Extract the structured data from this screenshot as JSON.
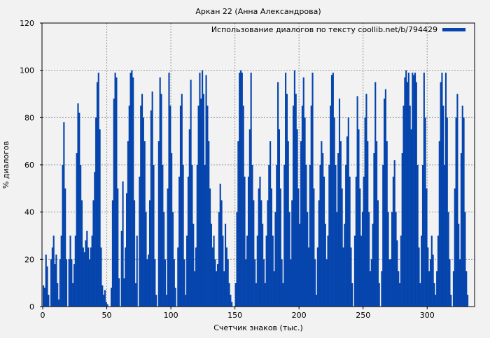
{
  "chart_data": {
    "type": "bar",
    "title": "Аркан 22 (Анна Александрова)",
    "xlabel": "Счетчик знаков (тыс.)",
    "ylabel": "% диалогов",
    "xlim": [
      0,
      337
    ],
    "ylim": [
      0,
      120
    ],
    "xticks": [
      0,
      50,
      100,
      150,
      200,
      250,
      300
    ],
    "yticks": [
      0,
      20,
      40,
      60,
      80,
      100,
      120
    ],
    "grid": true,
    "legend": {
      "placement": "top-right",
      "entries": [
        "Использование диалогов по тексту coollib.net/b/794429"
      ]
    },
    "series": [
      {
        "name": "Использование диалогов по тексту coollib.net/b/794429",
        "color": "#0645ad",
        "x_step": 1,
        "values": [
          9,
          8,
          22,
          17,
          5,
          0,
          20,
          25,
          30,
          18,
          22,
          10,
          3,
          20,
          30,
          60,
          78,
          50,
          20,
          0,
          20,
          30,
          20,
          10,
          18,
          30,
          65,
          86,
          82,
          60,
          45,
          25,
          23,
          28,
          32,
          25,
          20,
          25,
          30,
          45,
          57,
          80,
          95,
          99,
          75,
          25,
          9,
          5,
          7,
          2,
          1,
          0,
          0,
          8,
          45,
          88,
          99,
          97,
          50,
          12,
          0,
          32,
          53,
          12,
          25,
          48,
          70,
          85,
          99,
          100,
          97,
          45,
          10,
          30,
          0,
          55,
          85,
          90,
          80,
          70,
          40,
          20,
          22,
          45,
          83,
          91,
          60,
          20,
          5,
          0,
          70,
          97,
          90,
          60,
          40,
          20,
          5,
          50,
          99,
          85,
          65,
          40,
          20,
          8,
          0,
          25,
          55,
          85,
          90,
          60,
          20,
          5,
          30,
          55,
          75,
          96,
          60,
          35,
          15,
          25,
          60,
          85,
          99,
          88,
          100,
          90,
          60,
          98,
          85,
          70,
          50,
          35,
          25,
          30,
          20,
          15,
          18,
          40,
          52,
          45,
          30,
          15,
          35,
          25,
          20,
          10,
          5,
          2,
          0,
          0,
          10,
          40,
          70,
          99,
          100,
          99,
          85,
          55,
          20,
          30,
          55,
          75,
          99,
          60,
          45,
          20,
          10,
          30,
          50,
          55,
          45,
          35,
          20,
          10,
          30,
          45,
          60,
          70,
          50,
          30,
          15,
          40,
          60,
          95,
          75,
          50,
          20,
          10,
          60,
          99,
          90,
          70,
          40,
          20,
          45,
          85,
          100,
          90,
          75,
          50,
          35,
          70,
          85,
          97,
          80,
          60,
          40,
          25,
          60,
          85,
          99,
          50,
          20,
          5,
          25,
          45,
          60,
          70,
          65,
          55,
          35,
          20,
          30,
          60,
          85,
          98,
          99,
          80,
          60,
          40,
          65,
          88,
          70,
          50,
          25,
          35,
          60,
          72,
          80,
          55,
          25,
          10,
          0,
          30,
          55,
          89,
          75,
          50,
          30,
          40,
          55,
          80,
          90,
          70,
          40,
          15,
          20,
          35,
          65,
          95,
          70,
          45,
          10,
          0,
          15,
          60,
          88,
          92,
          70,
          40,
          20,
          20,
          40,
          55,
          62,
          40,
          28,
          15,
          10,
          30,
          65,
          85,
          97,
          100,
          95,
          99,
          85,
          75,
          99,
          98,
          99,
          95,
          60,
          25,
          10,
          30,
          60,
          99,
          80,
          50,
          25,
          15,
          20,
          30,
          22,
          10,
          5,
          15,
          30,
          70,
          95,
          99,
          85,
          60,
          99,
          80,
          40,
          20,
          5,
          0,
          15,
          50,
          80,
          90,
          35,
          20,
          65,
          85,
          80,
          40,
          15,
          5,
          0
        ]
      }
    ]
  }
}
